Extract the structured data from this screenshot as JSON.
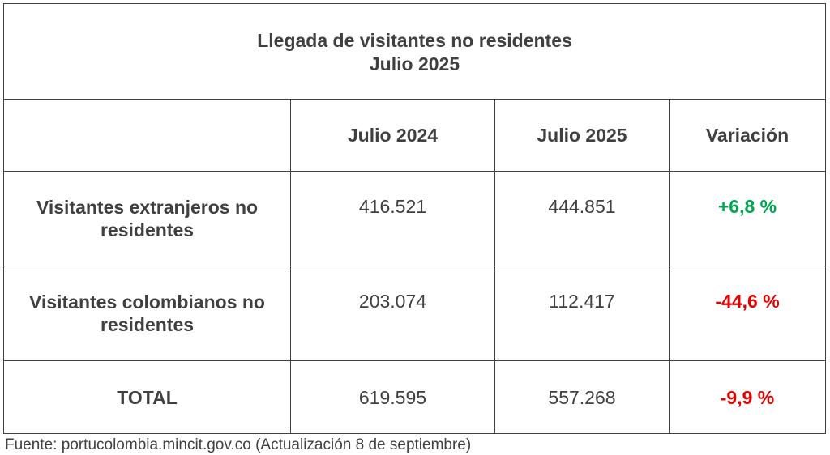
{
  "title": {
    "line1": "Llegada de visitantes no residentes",
    "line2": "Julio 2025"
  },
  "columns": [
    "",
    "Julio 2024",
    "Julio 2025",
    "Variación"
  ],
  "rows": [
    {
      "label": "Visitantes extranjeros no residentes",
      "julio_2024": "416.521",
      "julio_2025": "444.851",
      "variacion": "+6,8 %"
    },
    {
      "label": "Visitantes colombianos no residentes",
      "julio_2024": "203.074",
      "julio_2025": "112.417",
      "variacion": "-44,6 %"
    },
    {
      "label": "TOTAL",
      "julio_2024": "619.595",
      "julio_2025": "557.268",
      "variacion": "-9,9 %"
    }
  ],
  "source": "Fuente: portucolombia.mincit.gov.co (Actualización 8 de septiembre)",
  "colors": {
    "positive": "#00a650",
    "negative": "#e00000",
    "text": "#404040",
    "border": "#404040"
  }
}
